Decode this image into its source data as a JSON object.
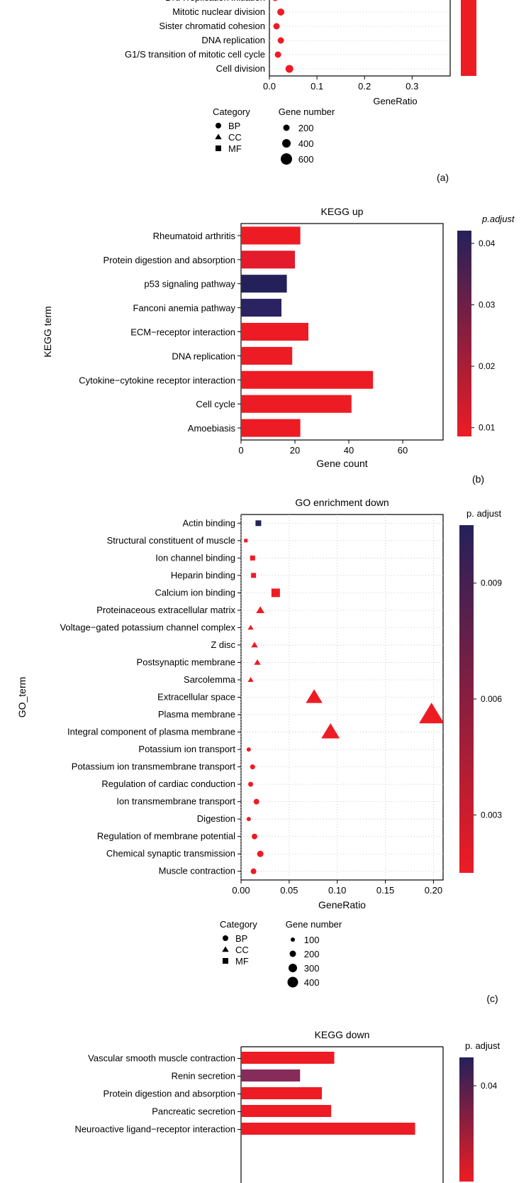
{
  "colors": {
    "low_red": "#ED1C24",
    "mid": "#872C5A",
    "high_blue": "#24215A",
    "black": "#000000",
    "grid": "#c0c0c0",
    "text": "#000000",
    "bg": "#ffffff"
  },
  "panel_a": {
    "caption": "(a)",
    "x_max": 0.38,
    "x_ticks": [
      0.0,
      0.1,
      0.2,
      0.3
    ],
    "x_label": "GeneRatio",
    "items": [
      {
        "label": "DNA replication initiation",
        "x": 0.012,
        "shape": "circle",
        "size": 9,
        "color": "#ED1C24"
      },
      {
        "label": "Mitotic nuclear division",
        "x": 0.024,
        "shape": "circle",
        "size": 10,
        "color": "#ED1C24"
      },
      {
        "label": "Sister chromatid cohesion",
        "x": 0.015,
        "shape": "circle",
        "size": 9,
        "color": "#ED1C24"
      },
      {
        "label": "DNA replication",
        "x": 0.024,
        "shape": "circle",
        "size": 9,
        "color": "#ED1C24"
      },
      {
        "label": "G1/S transition of mitotic cell cycle",
        "x": 0.018,
        "shape": "circle",
        "size": 9,
        "color": "#ED1C24"
      },
      {
        "label": "Cell division",
        "x": 0.042,
        "shape": "circle",
        "size": 11,
        "color": "#ED1C24"
      }
    ],
    "legend_category": {
      "title": "Category",
      "items": [
        {
          "label": "BP",
          "shape": "circle"
        },
        {
          "label": "CC",
          "shape": "triangle"
        },
        {
          "label": "MF",
          "shape": "square"
        }
      ]
    },
    "legend_size": {
      "title": "Gene number",
      "items": [
        {
          "label": "200",
          "size": 9
        },
        {
          "label": "400",
          "size": 12
        },
        {
          "label": "600",
          "size": 16
        }
      ]
    },
    "colorbar_solid": "#ED1C24"
  },
  "panel_b": {
    "caption": "(b)",
    "title": "KEGG up",
    "x_max": 75,
    "x_ticks": [
      0,
      20,
      40,
      60
    ],
    "x_label": "Gene count",
    "y_label": "KEGG term",
    "colorbar": {
      "label": "p.adjust",
      "ticks": [
        0.04,
        0.03,
        0.02,
        0.01
      ],
      "top_color": "#24215A",
      "bottom_color": "#ED1C24"
    },
    "bars": [
      {
        "label": "Rheumatoid arthritis",
        "value": 22,
        "color": "#ED1C24"
      },
      {
        "label": "Protein digestion and absorption",
        "value": 20,
        "color": "#E31B2C"
      },
      {
        "label": "p53 signaling pathway",
        "value": 17,
        "color": "#24215A"
      },
      {
        "label": "Fanconi anemia pathway",
        "value": 15,
        "color": "#2B2262"
      },
      {
        "label": "ECM−receptor interaction",
        "value": 25,
        "color": "#ED1C24"
      },
      {
        "label": "DNA replication",
        "value": 19,
        "color": "#ED1C24"
      },
      {
        "label": "Cytokine−cytokine receptor interaction",
        "value": 49,
        "color": "#ED1C24"
      },
      {
        "label": "Cell cycle",
        "value": 41,
        "color": "#ED1C24"
      },
      {
        "label": "Amoebiasis",
        "value": 22,
        "color": "#ED1C24"
      }
    ]
  },
  "panel_c": {
    "caption": "(c)",
    "title": "GO enrichment down",
    "x_max": 0.21,
    "x_ticks": [
      0.0,
      0.05,
      0.1,
      0.15,
      0.2
    ],
    "x_label": "GeneRatio",
    "y_label": "GO_term",
    "colorbar": {
      "label": "p. adjust",
      "ticks": [
        0.009,
        0.006,
        0.003
      ],
      "top_color": "#24215A",
      "bottom_color": "#ED1C24"
    },
    "items": [
      {
        "label": "Actin binding",
        "x": 0.018,
        "shape": "square",
        "size": 8,
        "color": "#24215A"
      },
      {
        "label": "Structural constituent of muscle",
        "x": 0.005,
        "shape": "square",
        "size": 5,
        "color": "#ED1C24"
      },
      {
        "label": "Ion channel binding",
        "x": 0.012,
        "shape": "square",
        "size": 7,
        "color": "#ED1C24"
      },
      {
        "label": "Heparin binding",
        "x": 0.013,
        "shape": "square",
        "size": 7,
        "color": "#ED1C24"
      },
      {
        "label": "Calcium ion binding",
        "x": 0.036,
        "shape": "square",
        "size": 12,
        "color": "#ED1C24"
      },
      {
        "label": "Proteinaceous extracellular matrix",
        "x": 0.02,
        "shape": "triangle",
        "size": 10,
        "color": "#ED1C24"
      },
      {
        "label": "Voltage−gated potassium channel complex",
        "x": 0.01,
        "shape": "triangle",
        "size": 7,
        "color": "#ED1C24"
      },
      {
        "label": "Z disc",
        "x": 0.014,
        "shape": "triangle",
        "size": 8,
        "color": "#ED1C24"
      },
      {
        "label": "Postsynaptic membrane",
        "x": 0.017,
        "shape": "triangle",
        "size": 8,
        "color": "#ED1C24"
      },
      {
        "label": "Sarcolemma",
        "x": 0.01,
        "shape": "triangle",
        "size": 7,
        "color": "#ED1C24"
      },
      {
        "label": "Extracellular space",
        "x": 0.076,
        "shape": "triangle",
        "size": 20,
        "color": "#ED1C24"
      },
      {
        "label": "Plasma membrane",
        "x": 0.198,
        "shape": "triangle",
        "size": 30,
        "color": "#ED1C24"
      },
      {
        "label": "Integral component of plasma membrane",
        "x": 0.093,
        "shape": "triangle",
        "size": 22,
        "color": "#ED1C24"
      },
      {
        "label": "Potassium ion transport",
        "x": 0.008,
        "shape": "circle",
        "size": 6,
        "color": "#ED1C24"
      },
      {
        "label": "Potassium ion transmembrane transport",
        "x": 0.012,
        "shape": "circle",
        "size": 7,
        "color": "#ED1C24"
      },
      {
        "label": "Regulation of cardiac conduction",
        "x": 0.01,
        "shape": "circle",
        "size": 7,
        "color": "#ED1C24"
      },
      {
        "label": "Ion transmembrane transport",
        "x": 0.016,
        "shape": "circle",
        "size": 8,
        "color": "#ED1C24"
      },
      {
        "label": "Digestion",
        "x": 0.008,
        "shape": "circle",
        "size": 6,
        "color": "#ED1C24"
      },
      {
        "label": "Regulation of membrane potential",
        "x": 0.014,
        "shape": "circle",
        "size": 8,
        "color": "#ED1C24"
      },
      {
        "label": "Chemical synaptic transmission",
        "x": 0.02,
        "shape": "circle",
        "size": 9,
        "color": "#ED1C24"
      },
      {
        "label": "Muscle contraction",
        "x": 0.013,
        "shape": "circle",
        "size": 8,
        "color": "#ED1C24"
      }
    ],
    "legend_category": {
      "title": "Category",
      "items": [
        {
          "label": "BP",
          "shape": "circle"
        },
        {
          "label": "CC",
          "shape": "triangle"
        },
        {
          "label": "MF",
          "shape": "square"
        }
      ]
    },
    "legend_size": {
      "title": "Gene number",
      "items": [
        {
          "label": "100",
          "size": 6
        },
        {
          "label": "200",
          "size": 9
        },
        {
          "label": "300",
          "size": 12
        },
        {
          "label": "400",
          "size": 15
        }
      ]
    }
  },
  "panel_d": {
    "title": "KEGG down",
    "x_max": 65,
    "colorbar": {
      "label": "p. adjust",
      "ticks": [
        0.04
      ],
      "top_color": "#24215A",
      "bottom_color": "#ED1C24"
    },
    "bars": [
      {
        "label": "Vascular smooth muscle contraction",
        "value": 30,
        "color": "#ED1C24"
      },
      {
        "label": "Renin secretion",
        "value": 19,
        "color": "#872C5A"
      },
      {
        "label": "Protein digestion and absorption",
        "value": 26,
        "color": "#ED1C24"
      },
      {
        "label": "Pancreatic secretion",
        "value": 29,
        "color": "#ED1C24"
      },
      {
        "label": "Neuroactive ligand−receptor interaction",
        "value": 56,
        "color": "#ED1C24"
      }
    ]
  }
}
